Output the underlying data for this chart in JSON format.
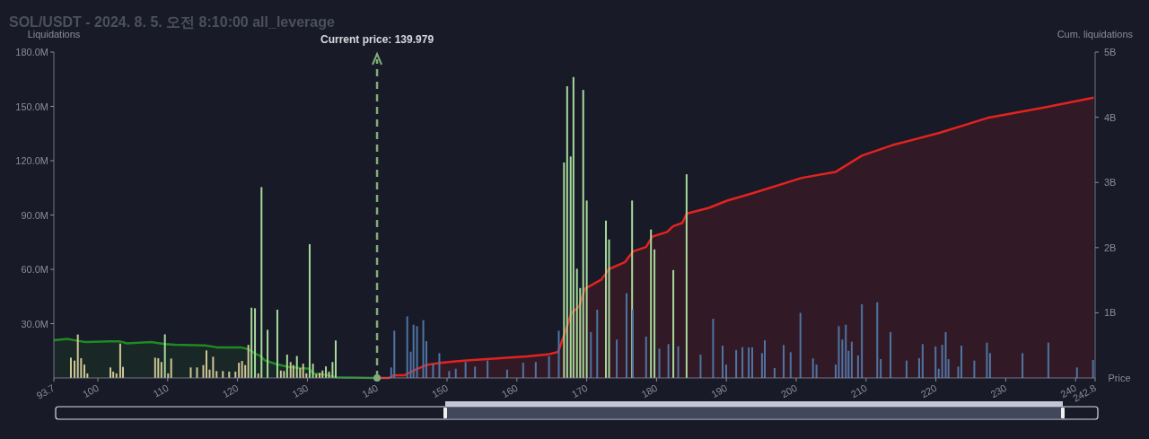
{
  "chart_data": {
    "type": "bar",
    "title": "SOL/USDT - 2024. 8. 5. 오전 8:10:00 all_leverage",
    "ylabel": "Liquidations",
    "y2label": "Cum. liquidations",
    "xlabel": "Price",
    "xlim": [
      93.7,
      242.8
    ],
    "xticks": [
      93.7,
      100,
      110,
      120,
      130,
      140,
      150,
      160,
      170,
      180,
      190,
      200,
      210,
      220,
      230,
      240,
      242.8
    ],
    "ylim": [
      0,
      180
    ],
    "yticks": [
      {
        "value": 30,
        "label": "30.0M"
      },
      {
        "value": 60,
        "label": "60.0M"
      },
      {
        "value": 90,
        "label": "90.0M"
      },
      {
        "value": 120,
        "label": "120.0M"
      },
      {
        "value": 150,
        "label": "150.0M"
      },
      {
        "value": 180,
        "label": "180.0M"
      }
    ],
    "y2lim": [
      0,
      5
    ],
    "y2ticks": [
      {
        "value": 1,
        "label": "1B"
      },
      {
        "value": 2,
        "label": "2B"
      },
      {
        "value": 3,
        "label": "3B"
      },
      {
        "value": 4,
        "label": "4B"
      },
      {
        "value": 5,
        "label": "5B"
      }
    ],
    "ref_lines": [
      {
        "axis": "x",
        "value": 139.979,
        "label": "Current price: 139.979",
        "color": "#7fae7b",
        "line_style": "dashed"
      }
    ],
    "series": [
      {
        "type": "area",
        "axis": "y2",
        "color": "#1f8a24",
        "x": [
          93.7,
          95.63,
          97.13,
          98.2,
          101.63,
          103.2,
          104.2,
          107.6,
          109.6,
          111.05,
          115.33,
          117.05,
          120.5,
          121.55,
          122.6,
          123.26,
          123.9,
          125.6,
          127.3,
          129.05,
          130.33,
          130.76,
          132.5,
          134.2,
          139.75,
          139.979
        ],
        "values": [
          0.58,
          0.6,
          0.57,
          0.55,
          0.56,
          0.56,
          0.53,
          0.55,
          0.52,
          0.51,
          0.5,
          0.47,
          0.47,
          0.44,
          0.37,
          0.34,
          0.27,
          0.21,
          0.17,
          0.15,
          0.14,
          0.07,
          0.05,
          0.01,
          0,
          0
        ]
      },
      {
        "type": "area",
        "axis": "y2",
        "color": "#e3231f",
        "x": [
          139.979,
          141.68,
          142.33,
          143.83,
          145.54,
          147.04,
          148.97,
          152.83,
          157.1,
          161.4,
          164.4,
          165.9,
          167.0,
          167.8,
          168.9,
          169.75,
          172.1,
          173.2,
          175.5,
          176.6,
          178.5,
          179.4,
          181.5,
          182.4,
          183.7,
          184.3,
          187.5,
          190.1,
          193.96,
          200.8,
          205.6,
          209.4,
          213.7,
          220.5,
          227.4,
          235.5,
          242.6
        ],
        "values": [
          0,
          0,
          0.04,
          0.04,
          0.13,
          0.2,
          0.23,
          0.27,
          0.3,
          0.33,
          0.36,
          0.4,
          0.73,
          1.0,
          1.09,
          1.37,
          1.51,
          1.67,
          1.78,
          1.94,
          2.01,
          2.17,
          2.24,
          2.33,
          2.38,
          2.52,
          2.61,
          2.72,
          2.84,
          3.07,
          3.16,
          3.41,
          3.57,
          3.76,
          3.99,
          4.15,
          4.3
        ]
      },
      {
        "color": "#cfc594",
        "x": [
          96.14,
          96.66,
          97.13,
          97.6,
          98.07,
          98.5,
          101.8,
          102.2,
          102.66,
          103.2,
          103.6,
          108.2,
          108.65,
          109.1,
          110.06,
          110.5,
          113.3,
          114.2,
          115.1,
          115.55,
          116.0,
          116.5,
          117.0,
          117.9,
          118.8,
          119.7,
          120.2,
          120.65,
          121.1,
          121.55,
          122.97,
          126.2,
          126.65,
          127.6,
          128.0,
          128.96,
          129.4,
          129.86,
          131.27,
          131.75,
          132.17,
          133.1
        ],
        "values": [
          11.2,
          9.6,
          24.0,
          10.9,
          7.4,
          2.5,
          5.8,
          3.5,
          2.5,
          19.0,
          6.1,
          11.2,
          10.9,
          8.8,
          2.5,
          10.7,
          5.8,
          5.8,
          7.1,
          15.2,
          4.6,
          11.7,
          3.8,
          3.8,
          3.5,
          3.5,
          8.4,
          9.4,
          7.1,
          18.3,
          2.5,
          4.1,
          3.8,
          8.8,
          7.1,
          5.4,
          7.9,
          2.5,
          2.1,
          2.8,
          4.1,
          3.5
        ]
      },
      {
        "color": "#a6d99a",
        "x": [
          109.6,
          122.0,
          122.5,
          123.43,
          124.3,
          125.7,
          127.1,
          128.5,
          130.33,
          130.8,
          132.65,
          133.6,
          134.06,
          166.75,
          167.2,
          167.7,
          168.1,
          168.6,
          169.06,
          169.5,
          170.0,
          172.75,
          173.2,
          176.5,
          179.2,
          179.7,
          182.4,
          184.3
        ],
        "values": [
          24.1,
          38.8,
          38.5,
          105.4,
          26.6,
          37.7,
          12.9,
          12.1,
          73.9,
          7.9,
          6.4,
          8.8,
          20.7,
          119.0,
          161.1,
          122.3,
          166.2,
          60.3,
          49.7,
          159.1,
          98.0,
          86.9,
          76.5,
          98.0,
          82.0,
          71.0,
          59.6,
          112.5
        ]
      },
      {
        "color": "#4f74a3",
        "x": [
          142.0,
          142.45,
          144.3,
          144.8,
          145.2,
          145.7,
          146.6,
          147.04,
          148.0,
          148.9,
          150.3,
          151.25,
          152.65,
          154.0,
          155.8,
          158.6,
          160.9,
          162.7,
          164.6,
          166.0,
          170.6,
          171.5,
          174.3,
          175.7,
          176.6,
          178.5,
          180.4,
          181.7,
          183.1,
          186.3,
          188.1,
          189.46,
          189.97,
          191.4,
          192.3,
          193.2,
          193.7,
          195.1,
          195.5,
          196.9,
          198.2,
          199.2,
          200.6,
          202.4,
          202.9,
          205.65,
          206.1,
          206.6,
          207.1,
          207.5,
          207.95,
          208.85,
          209.4,
          211.6,
          212.1,
          213.5,
          215.8,
          217.6,
          218.1,
          219.95,
          220.4,
          220.9,
          221.4,
          221.8,
          223.2,
          223.65,
          225.5,
          227.3,
          227.75,
          232.4,
          236.1,
          240.2,
          242.5
        ],
        "values": [
          5.8,
          26.1,
          34.0,
          14.5,
          29.4,
          28.6,
          31.9,
          20.3,
          7.9,
          13.7,
          3.8,
          5.1,
          8.8,
          6.3,
          9.6,
          4.6,
          8.4,
          8.8,
          12.0,
          26.1,
          25.3,
          37.7,
          21.2,
          46.8,
          37.7,
          22.8,
          16.2,
          18.7,
          17.5,
          12.9,
          32.7,
          17.8,
          7.4,
          15.4,
          17.0,
          16.9,
          16.9,
          13.7,
          20.8,
          5.5,
          18.2,
          14.2,
          36.0,
          10.8,
          7.4,
          7.4,
          28.6,
          21.2,
          29.4,
          15.0,
          20.0,
          12.4,
          40.7,
          41.8,
          10.4,
          25.3,
          9.6,
          10.9,
          18.7,
          17.4,
          5.1,
          18.3,
          25.3,
          10.4,
          6.3,
          17.8,
          9.6,
          19.5,
          13.7,
          13.7,
          19.5,
          5.8,
          9.9
        ]
      }
    ]
  }
}
